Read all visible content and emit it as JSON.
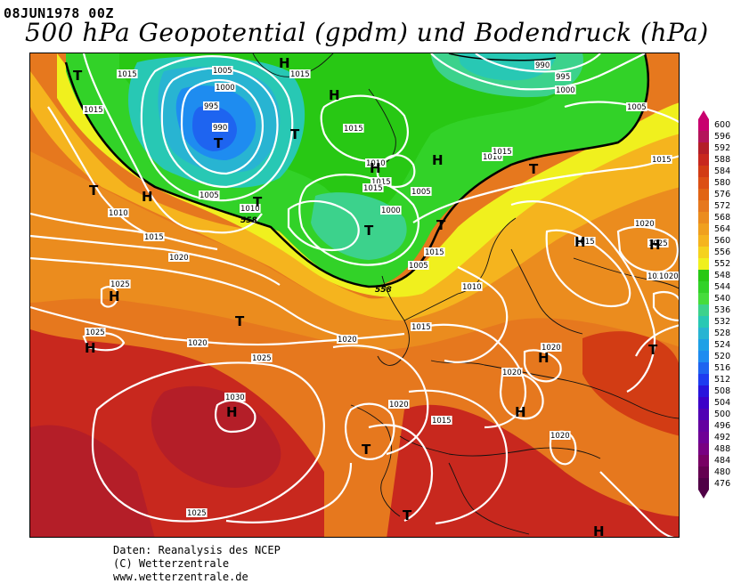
{
  "header": {
    "date": "08JUN1978 00Z",
    "title": "500 hPa Geopotential (gpdm) und Bodendruck (hPa)"
  },
  "legend": {
    "values": [
      "600",
      "596",
      "592",
      "588",
      "584",
      "580",
      "576",
      "572",
      "568",
      "564",
      "560",
      "556",
      "552",
      "548",
      "544",
      "540",
      "536",
      "532",
      "528",
      "524",
      "520",
      "516",
      "512",
      "508",
      "504",
      "500",
      "496",
      "492",
      "488",
      "484",
      "480",
      "476"
    ],
    "colors": [
      "#c8006e",
      "#b4145a",
      "#b41e28",
      "#c8281e",
      "#d23c14",
      "#dc5014",
      "#e16414",
      "#e6781e",
      "#eb8c1e",
      "#f0a01e",
      "#f5b41e",
      "#f5d21e",
      "#f0f01e",
      "#28c814",
      "#32d228",
      "#46dc3c",
      "#3cd28c",
      "#28c8b4",
      "#28b4d2",
      "#1ea0e6",
      "#1e8cf0",
      "#1e64f0",
      "#1e3cf0",
      "#2814dc",
      "#3c00c8",
      "#5000b4",
      "#6400a0",
      "#6e0096",
      "#780082",
      "#780064",
      "#640050",
      "#500046"
    ]
  },
  "map": {
    "pressure_labels": [
      "1015",
      "1015",
      "1005",
      "1000",
      "995",
      "990",
      "1015",
      "1015",
      "990",
      "995",
      "1000",
      "1005",
      "1015",
      "1010",
      "1015",
      "1005",
      "1010",
      "1010",
      "1005",
      "1000",
      "1015",
      "1020",
      "1005",
      "1010",
      "1025",
      "1025",
      "1020",
      "1015",
      "1020",
      "1025",
      "1020",
      "1015",
      "1020",
      "1020",
      "1030",
      "1020",
      "1015",
      "1010",
      "1020",
      "1025",
      "1015",
      "1020",
      "1015",
      "1020",
      "1025",
      "1015"
    ],
    "low_marker": "T",
    "high_marker": "H",
    "contour_558": "558"
  },
  "footer": {
    "line1": "Daten: Reanalysis des NCEP",
    "line2": "(C) Wetterzentrale",
    "line3": "www.wetterzentrale.de"
  }
}
